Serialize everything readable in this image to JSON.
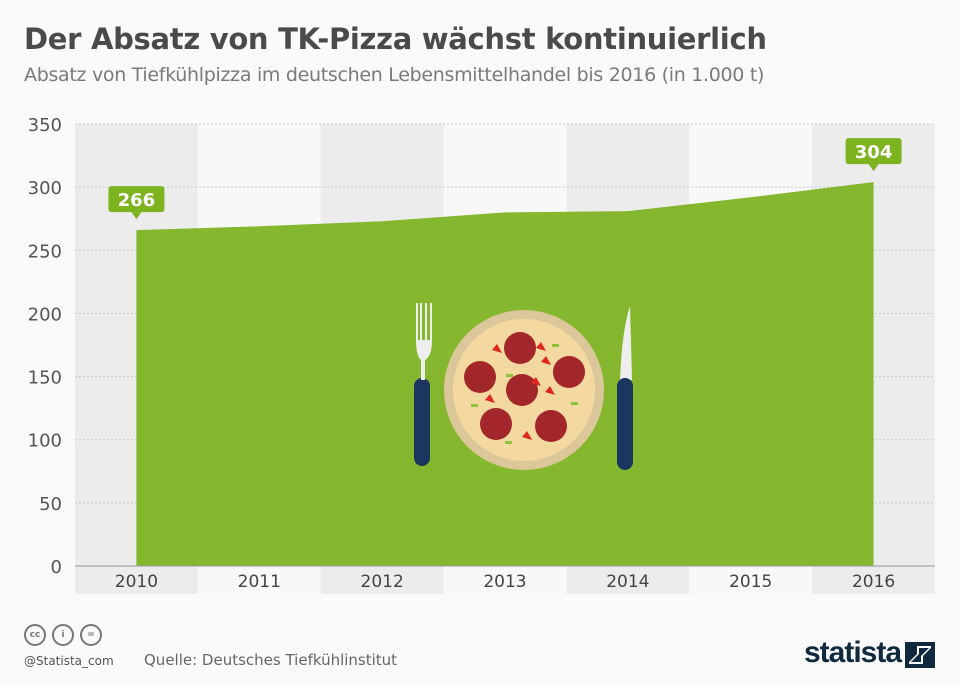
{
  "header": {
    "title": "Der Absatz von TK-Pizza wächst kontinuierlich",
    "subtitle": "Absatz von Tiefkühlpizza im deutschen Lebensmittelhandel bis 2016 (in 1.000 t)"
  },
  "footer": {
    "handle": "@Statista_com",
    "source": "Quelle: Deutsches Tiefkühlinstitut",
    "logo": "statista",
    "license_icons": [
      "cc-icon",
      "by-icon",
      "nd-icon"
    ],
    "license_text": [
      "cc",
      "i",
      "="
    ]
  },
  "colors": {
    "area": "#7db31f",
    "band": "#ececec",
    "label_bg": "#7db31f",
    "text": "#4a4a4a"
  },
  "chart_data": {
    "type": "area",
    "title": "Der Absatz von TK-Pizza wächst kontinuierlich",
    "categories": [
      "2010",
      "2011",
      "2012",
      "2013",
      "2014",
      "2015",
      "2016"
    ],
    "values": [
      266,
      269,
      273,
      280,
      281,
      292,
      304
    ],
    "labeled": {
      "2010": "266",
      "2016": "304"
    },
    "ylim": [
      0,
      350
    ],
    "yticks": [
      "0",
      "50",
      "100",
      "150",
      "200",
      "250",
      "300",
      "350"
    ],
    "grid": true,
    "xlabel": "",
    "ylabel": ""
  }
}
